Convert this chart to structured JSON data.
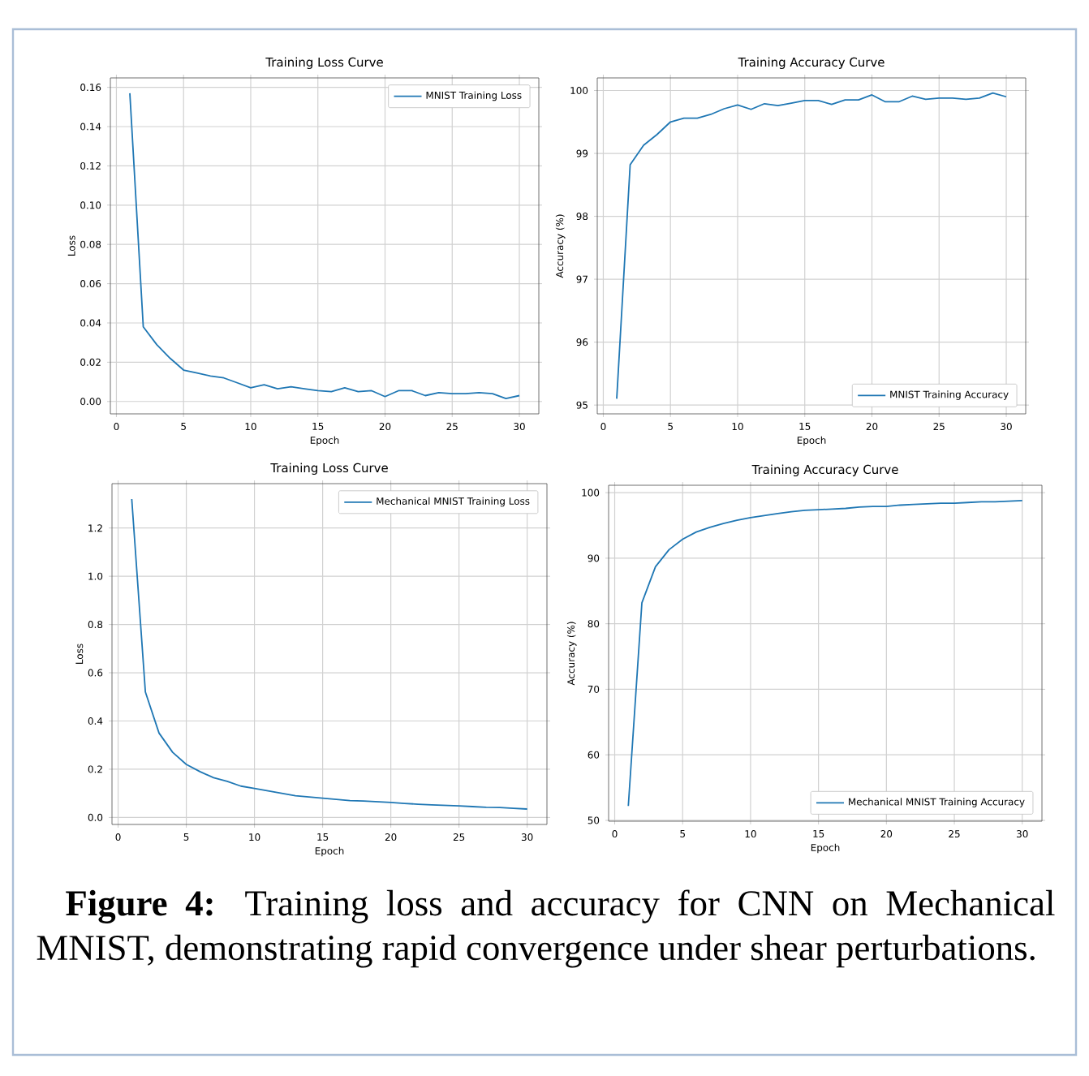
{
  "chart_data": [
    {
      "type": "line",
      "title": "Training Loss Curve",
      "xlabel": "Epoch",
      "ylabel": "Loss",
      "grid": true,
      "legend": "top right",
      "xlim": [
        -0.45,
        31.45
      ],
      "ylim": [
        -0.0063,
        0.1648
      ],
      "xticks": [
        0,
        5,
        10,
        15,
        20,
        25,
        30
      ],
      "yticks": [
        {
          "value": 0,
          "label": "0.00"
        },
        {
          "value": 0.02,
          "label": "0.02"
        },
        {
          "value": 0.04,
          "label": "0.04"
        },
        {
          "value": 0.06,
          "label": "0.06"
        },
        {
          "value": 0.08,
          "label": "0.08"
        },
        {
          "value": 0.1,
          "label": "0.10"
        },
        {
          "value": 0.12,
          "label": "0.12"
        },
        {
          "value": 0.14,
          "label": "0.14"
        },
        {
          "value": 0.16,
          "label": "0.16"
        }
      ],
      "x": [
        1,
        2,
        3,
        4,
        5,
        6,
        7,
        8,
        9,
        10,
        11,
        12,
        13,
        14,
        15,
        16,
        17,
        18,
        19,
        20,
        21,
        22,
        23,
        24,
        25,
        26,
        27,
        28,
        29,
        30
      ],
      "series": [
        {
          "name": "MNIST Training Loss",
          "color": "#1f77b4",
          "values": [
            0.157,
            0.038,
            0.029,
            0.022,
            0.016,
            0.0145,
            0.013,
            0.012,
            0.0095,
            0.007,
            0.0085,
            0.0065,
            0.0075,
            0.0065,
            0.0055,
            0.005,
            0.007,
            0.005,
            0.0055,
            0.0025,
            0.0055,
            0.0055,
            0.003,
            0.0045,
            0.004,
            0.004,
            0.0045,
            0.004,
            0.0015,
            0.003
          ]
        }
      ]
    },
    {
      "type": "line",
      "title": "Training Accuracy Curve",
      "xlabel": "Epoch",
      "ylabel": "Accuracy (%)",
      "grid": true,
      "legend": "bottom right",
      "xlim": [
        -0.45,
        31.45
      ],
      "ylim": [
        94.86,
        100.2
      ],
      "xticks": [
        0,
        5,
        10,
        15,
        20,
        25,
        30
      ],
      "yticks": [
        95,
        96,
        97,
        98,
        99,
        100
      ],
      "x": [
        1,
        2,
        3,
        4,
        5,
        6,
        7,
        8,
        9,
        10,
        11,
        12,
        13,
        14,
        15,
        16,
        17,
        18,
        19,
        20,
        21,
        22,
        23,
        24,
        25,
        26,
        27,
        28,
        29,
        30
      ],
      "series": [
        {
          "name": "MNIST Training Accuracy",
          "color": "#1f77b4",
          "values": [
            95.1,
            98.82,
            99.13,
            99.3,
            99.5,
            99.56,
            99.56,
            99.62,
            99.71,
            99.77,
            99.7,
            99.79,
            99.76,
            99.8,
            99.84,
            99.84,
            99.78,
            99.85,
            99.85,
            99.93,
            99.82,
            99.82,
            99.91,
            99.86,
            99.88,
            99.88,
            99.86,
            99.88,
            99.96,
            99.9
          ]
        }
      ]
    },
    {
      "type": "line",
      "title": "Training Loss Curve",
      "xlabel": "Epoch",
      "ylabel": "Loss",
      "grid": true,
      "legend": "top right",
      "xlim": [
        -0.45,
        31.45
      ],
      "ylim": [
        -0.029,
        1.384
      ],
      "xticks": [
        0,
        5,
        10,
        15,
        20,
        25,
        30
      ],
      "yticks": [
        {
          "value": 0,
          "label": "0.0"
        },
        {
          "value": 0.2,
          "label": "0.2"
        },
        {
          "value": 0.4,
          "label": "0.4"
        },
        {
          "value": 0.6,
          "label": "0.6"
        },
        {
          "value": 0.8,
          "label": "0.8"
        },
        {
          "value": 1,
          "label": "1.0"
        },
        {
          "value": 1.2,
          "label": "1.2"
        }
      ],
      "x": [
        1,
        2,
        3,
        4,
        5,
        6,
        7,
        8,
        9,
        10,
        11,
        12,
        13,
        14,
        15,
        16,
        17,
        18,
        19,
        20,
        21,
        22,
        23,
        24,
        25,
        26,
        27,
        28,
        29,
        30
      ],
      "series": [
        {
          "name": "Mechanical MNIST Training Loss",
          "color": "#1f77b4",
          "values": [
            1.32,
            0.52,
            0.35,
            0.27,
            0.22,
            0.19,
            0.165,
            0.15,
            0.13,
            0.12,
            0.11,
            0.1,
            0.09,
            0.085,
            0.08,
            0.075,
            0.07,
            0.068,
            0.065,
            0.062,
            0.058,
            0.055,
            0.052,
            0.05,
            0.048,
            0.045,
            0.042,
            0.041,
            0.038,
            0.035
          ]
        }
      ]
    },
    {
      "type": "line",
      "title": "Training Accuracy Curve",
      "xlabel": "Epoch",
      "ylabel": "Accuracy (%)",
      "grid": true,
      "legend": "bottom right",
      "xlim": [
        -0.45,
        31.45
      ],
      "ylim": [
        49.87,
        101.13
      ],
      "xticks": [
        0,
        5,
        10,
        15,
        20,
        25,
        30
      ],
      "yticks": [
        50,
        60,
        70,
        80,
        90,
        100
      ],
      "x": [
        1,
        2,
        3,
        4,
        5,
        6,
        7,
        8,
        9,
        10,
        11,
        12,
        13,
        14,
        15,
        16,
        17,
        18,
        19,
        20,
        21,
        22,
        23,
        24,
        25,
        26,
        27,
        28,
        29,
        30
      ],
      "series": [
        {
          "name": "Mechanical MNIST Training Accuracy",
          "color": "#1f77b4",
          "values": [
            52.2,
            83.2,
            88.7,
            91.3,
            92.9,
            94.0,
            94.7,
            95.3,
            95.8,
            96.2,
            96.5,
            96.8,
            97.1,
            97.3,
            97.4,
            97.5,
            97.6,
            97.8,
            97.9,
            97.9,
            98.1,
            98.2,
            98.3,
            98.4,
            98.4,
            98.5,
            98.6,
            98.6,
            98.7,
            98.8
          ]
        }
      ],
      "annotations": [
        "**Figure 4:** Training loss and accuracy for CNN on Mechanical MNIST, demonstrating rapid convergence under shear perturbations."
      ]
    }
  ]
}
